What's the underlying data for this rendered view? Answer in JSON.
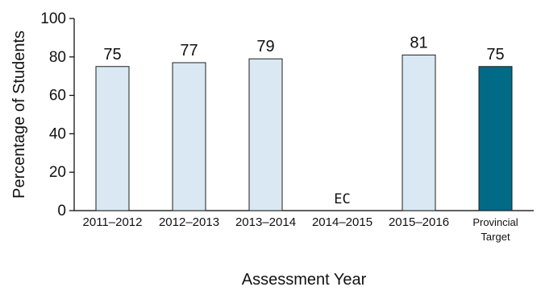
{
  "chart_data": {
    "type": "bar",
    "categories": [
      [
        "2011–2012"
      ],
      [
        "2012–2013"
      ],
      [
        "2013–2014"
      ],
      [
        "2014–2015"
      ],
      [
        "2015–2016"
      ],
      [
        "Provincial",
        "Target"
      ]
    ],
    "values": [
      75,
      77,
      79,
      null,
      81,
      75
    ],
    "data_labels": [
      "75",
      "77",
      "79",
      "EC",
      "81",
      "75"
    ],
    "bar_colors": [
      "#d9e8f2",
      "#d9e8f2",
      "#d9e8f2",
      "#d9e8f2",
      "#d9e8f2",
      "#006a87"
    ],
    "xlabel": "Assessment Year",
    "ylabel": "Percentage of Students",
    "ylim": [
      0,
      100
    ],
    "yticks": [
      0,
      20,
      40,
      60,
      80,
      100
    ],
    "grid": false,
    "legend": "none"
  }
}
